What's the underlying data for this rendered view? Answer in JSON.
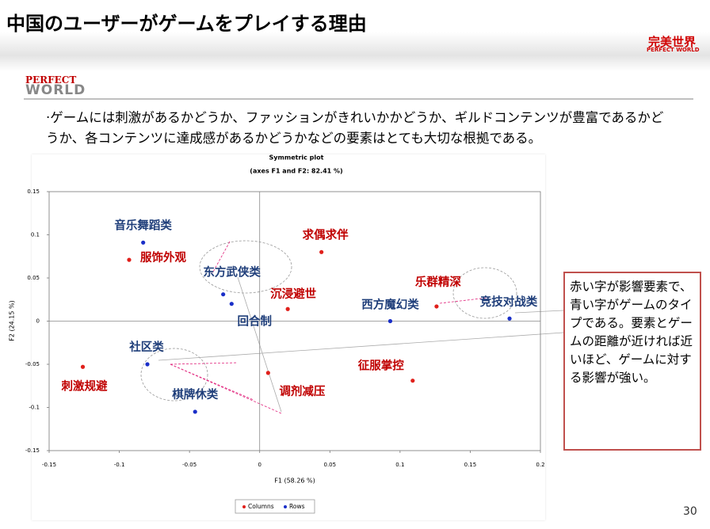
{
  "slide": {
    "title": "中国のユーザーがゲームをプレイする理由",
    "brand_cn": "完美世界",
    "brand_en": "PERFECT WORLD",
    "logo_top": "PERFECT",
    "logo_bottom": "WORLD",
    "body": "·ゲームには刺激があるかどうか、ファッションがきれいかかどうか、ギルドコンテンツが豊富であるかどうか、各コンテンツに達成感があるかどうかなどの要素はとても大切な根拠である。",
    "callout": "赤い字が影響要素で、青い字がゲームのタイプである。要素とゲームの距離が近ければ近いほど、ゲームに対する影響が強い。",
    "page_number": "30"
  },
  "chart_data": {
    "type": "scatter",
    "title": "Symmetric plot",
    "subtitle": "(axes F1 and F2: 82.41 %)",
    "x_label": "F1 (58.26 %)",
    "y_label": "F2 (24.15 %)",
    "xlim": [
      -0.15,
      0.2
    ],
    "xticks": [
      -0.15,
      -0.1,
      -0.05,
      0,
      0.05,
      0.1,
      0.15,
      0.2
    ],
    "ylim": [
      -0.15,
      0.15
    ],
    "yticks": [
      -0.15,
      -0.1,
      -0.05,
      0,
      0.05,
      0.1,
      0.15
    ],
    "legend": "bottom",
    "series": [
      {
        "name": "Columns",
        "color": "#e0201b",
        "point_labels": [
          "服饰外观",
          "求偶求伴",
          "沉浸避世",
          "乐群精深",
          "刺激规避",
          "调剂减压",
          "征服掌控"
        ],
        "x": [
          -0.093,
          0.044,
          0.02,
          0.126,
          -0.126,
          0.006,
          0.109
        ],
        "values": [
          0.071,
          0.08,
          0.014,
          0.017,
          -0.053,
          -0.06,
          -0.069
        ]
      },
      {
        "name": "Rows",
        "color": "#1a2fc8",
        "point_labels": [
          "音乐舞蹈类",
          "东方武侠类",
          "回合制",
          "西方魔幻类",
          "竞技对战类",
          "社区类",
          "棋牌休类"
        ],
        "x": [
          -0.083,
          -0.026,
          -0.02,
          0.093,
          0.178,
          -0.08,
          -0.046
        ],
        "values": [
          0.091,
          0.031,
          0.02,
          0.0,
          0.003,
          -0.05,
          -0.105
        ]
      }
    ]
  }
}
